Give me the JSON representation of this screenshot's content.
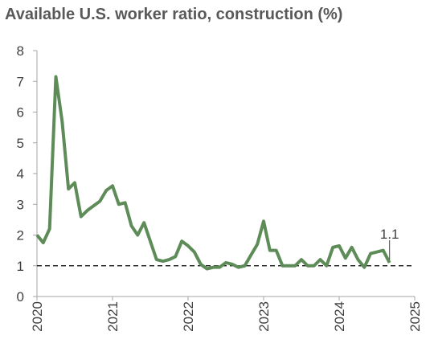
{
  "chart_data": {
    "type": "line",
    "title": "Available U.S. worker ratio, construction (%)",
    "x": [
      2020,
      2020.083,
      2020.167,
      2020.25,
      2020.333,
      2020.417,
      2020.5,
      2020.583,
      2020.667,
      2020.75,
      2020.833,
      2020.917,
      2021,
      2021.083,
      2021.167,
      2021.25,
      2021.333,
      2021.417,
      2021.5,
      2021.583,
      2021.667,
      2021.75,
      2021.833,
      2021.917,
      2022,
      2022.083,
      2022.167,
      2022.25,
      2022.333,
      2022.417,
      2022.5,
      2022.583,
      2022.667,
      2022.75,
      2022.833,
      2022.917,
      2023,
      2023.083,
      2023.167,
      2023.25,
      2023.333,
      2023.417,
      2023.5,
      2023.583,
      2023.667,
      2023.75,
      2023.833,
      2023.917,
      2024,
      2024.083,
      2024.167,
      2024.25,
      2024.333,
      2024.417,
      2024.5,
      2024.583,
      2024.667
    ],
    "series": [
      {
        "name": "Available U.S. worker ratio",
        "color": "#5e8c58",
        "values": [
          2.0,
          1.75,
          2.2,
          7.15,
          5.7,
          3.5,
          3.7,
          2.6,
          2.8,
          2.95,
          3.1,
          3.45,
          3.6,
          3.0,
          3.05,
          2.3,
          2.0,
          2.4,
          1.8,
          1.2,
          1.15,
          1.2,
          1.3,
          1.8,
          1.65,
          1.45,
          1.05,
          0.9,
          0.95,
          0.95,
          1.1,
          1.05,
          0.95,
          1.0,
          1.35,
          1.7,
          2.45,
          1.5,
          1.5,
          1.0,
          1.0,
          1.0,
          1.2,
          1.0,
          1.0,
          1.2,
          1.0,
          1.6,
          1.65,
          1.25,
          1.6,
          1.2,
          0.95,
          1.4,
          1.45,
          1.5,
          1.1
        ]
      }
    ],
    "reference_line": 1,
    "annotation": "1.1",
    "xlim": [
      2020,
      2025
    ],
    "xticks": [
      2020,
      2021,
      2022,
      2023,
      2024,
      2025
    ],
    "ylim": [
      0,
      8
    ],
    "yticks": [
      0,
      1,
      2,
      3,
      4,
      5,
      6,
      7,
      8
    ]
  }
}
